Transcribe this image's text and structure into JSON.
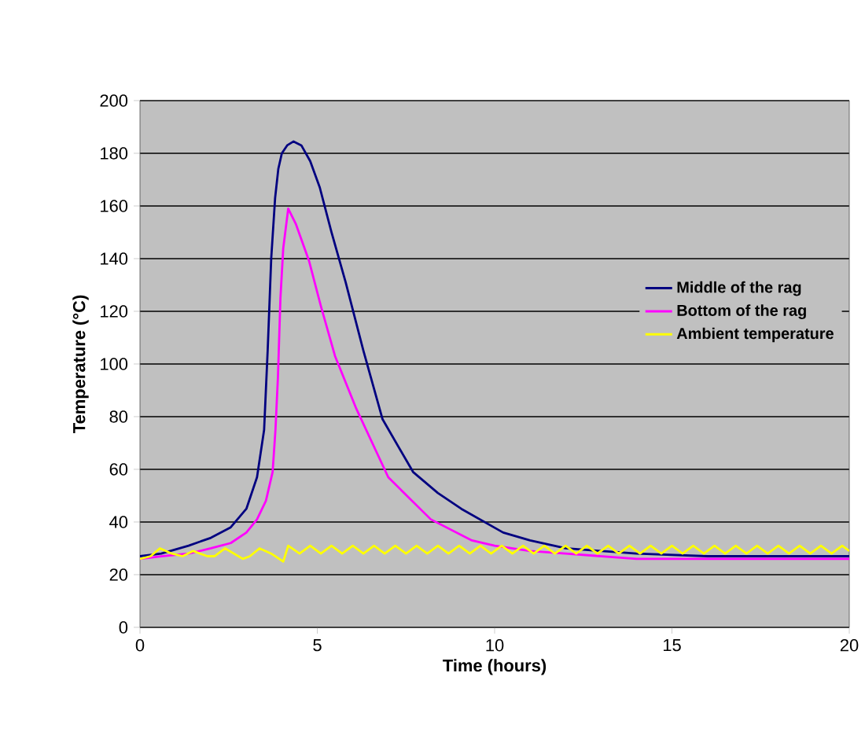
{
  "chart_data": {
    "type": "line",
    "xlabel": "Time (hours)",
    "ylabel": "Temperature (°C)",
    "xlim": [
      0,
      20
    ],
    "xticks": [
      0,
      5,
      10,
      15,
      20
    ],
    "ylim": [
      0,
      200
    ],
    "yticks": [
      0,
      20,
      40,
      60,
      80,
      100,
      120,
      140,
      160,
      180,
      200
    ],
    "grid": "y",
    "legend": "right",
    "marker": "none",
    "line_style": "solid",
    "series": [
      {
        "name": "Middle of the rag",
        "color": "#000080",
        "x": [
          0,
          0.6,
          1.37,
          2.0,
          2.56,
          3.0,
          3.3,
          3.5,
          3.6,
          3.7,
          3.81,
          3.9,
          4.0,
          4.15,
          4.33,
          4.55,
          4.8,
          5.07,
          5.4,
          5.8,
          6.3,
          6.84,
          7.7,
          8.4,
          9.06,
          10.24,
          11.0,
          12.0,
          13.0,
          14.0,
          16.0,
          18.0,
          20.0
        ],
        "values": [
          27,
          28,
          31,
          34,
          38,
          45,
          57,
          75,
          105,
          140,
          163,
          174,
          180,
          183,
          184.5,
          183,
          177,
          167,
          150,
          131,
          105,
          79,
          59,
          51,
          45,
          36,
          33,
          30,
          29,
          28,
          27,
          27,
          27
        ]
      },
      {
        "name": "Bottom of the rag",
        "color": "#ff00ff",
        "x": [
          0,
          0.6,
          1.37,
          2.0,
          2.56,
          3.0,
          3.3,
          3.55,
          3.74,
          3.82,
          3.89,
          3.96,
          4.04,
          4.18,
          4.4,
          4.77,
          5.1,
          5.5,
          6.1,
          7.0,
          8.2,
          9.36,
          10.0,
          11.0,
          12.0,
          14.0,
          16.0,
          18.0,
          20.0
        ],
        "values": [
          26,
          27,
          28,
          30,
          32,
          36,
          41,
          48,
          59,
          75,
          95,
          125,
          144,
          159,
          153,
          139,
          122,
          103,
          83,
          57,
          41,
          33,
          31,
          29,
          28,
          26,
          26,
          26,
          26
        ]
      },
      {
        "name": "Ambient temperature",
        "color": "#ffff00",
        "x": [
          0,
          0.3,
          0.56,
          0.9,
          1.2,
          1.5,
          1.9,
          2.1,
          2.4,
          2.9,
          3.1,
          3.37,
          3.7,
          4.04,
          4.18,
          4.5,
          4.8,
          5.1,
          5.4,
          5.7,
          6.0,
          6.3,
          6.6,
          6.9,
          7.2,
          7.5,
          7.8,
          8.1,
          8.4,
          8.7,
          9.0,
          9.3,
          9.6,
          9.9,
          10.2,
          10.5,
          10.8,
          11.1,
          11.4,
          11.7,
          12.0,
          12.3,
          12.6,
          12.9,
          13.2,
          13.5,
          13.8,
          14.1,
          14.4,
          14.7,
          15.0,
          15.3,
          15.6,
          15.9,
          16.2,
          16.5,
          16.8,
          17.1,
          17.4,
          17.7,
          18.0,
          18.3,
          18.6,
          18.9,
          19.2,
          19.5,
          19.8,
          20.0
        ],
        "values": [
          26,
          27,
          30,
          28,
          27,
          29,
          27,
          27,
          30,
          26,
          27,
          30,
          28,
          25,
          31,
          28,
          31,
          28,
          31,
          28,
          31,
          28,
          31,
          28,
          31,
          28,
          31,
          28,
          31,
          28,
          31,
          28,
          31,
          28,
          31,
          28,
          31,
          28,
          31,
          28,
          31,
          28,
          31,
          28,
          31,
          28,
          31,
          28,
          31,
          28,
          31,
          28,
          31,
          28,
          31,
          28,
          31,
          28,
          31,
          28,
          31,
          28,
          31,
          28,
          31,
          28,
          31,
          29
        ]
      }
    ]
  }
}
